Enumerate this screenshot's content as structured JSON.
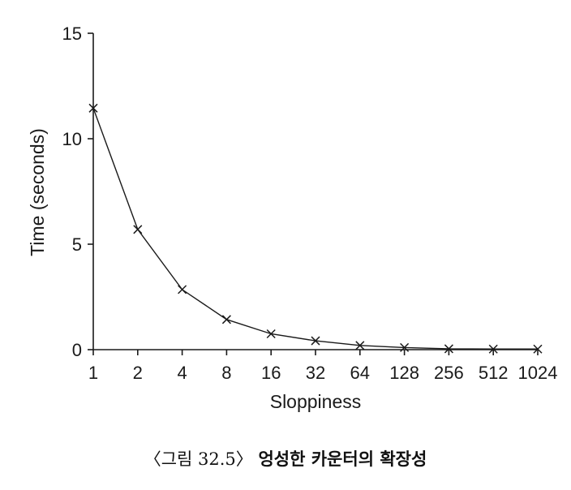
{
  "chart_data": {
    "type": "line",
    "xlabel": "Sloppiness",
    "ylabel": "Time (seconds)",
    "categories": [
      "1",
      "2",
      "4",
      "8",
      "16",
      "32",
      "64",
      "128",
      "256",
      "512",
      "1024"
    ],
    "series": [
      {
        "values": [
          11.45,
          5.7,
          2.85,
          1.43,
          0.75,
          0.42,
          0.2,
          0.1,
          0.04,
          0.03,
          0.03
        ],
        "marker": "x",
        "color": "#1a1a1a"
      }
    ],
    "ylim": [
      0,
      15
    ],
    "yticks": [
      0,
      5,
      10,
      15
    ],
    "x_scale": "log2",
    "grid": false
  },
  "caption": {
    "label": "〈그림 32.5〉",
    "title": "엉성한 카운터의 확장성"
  }
}
